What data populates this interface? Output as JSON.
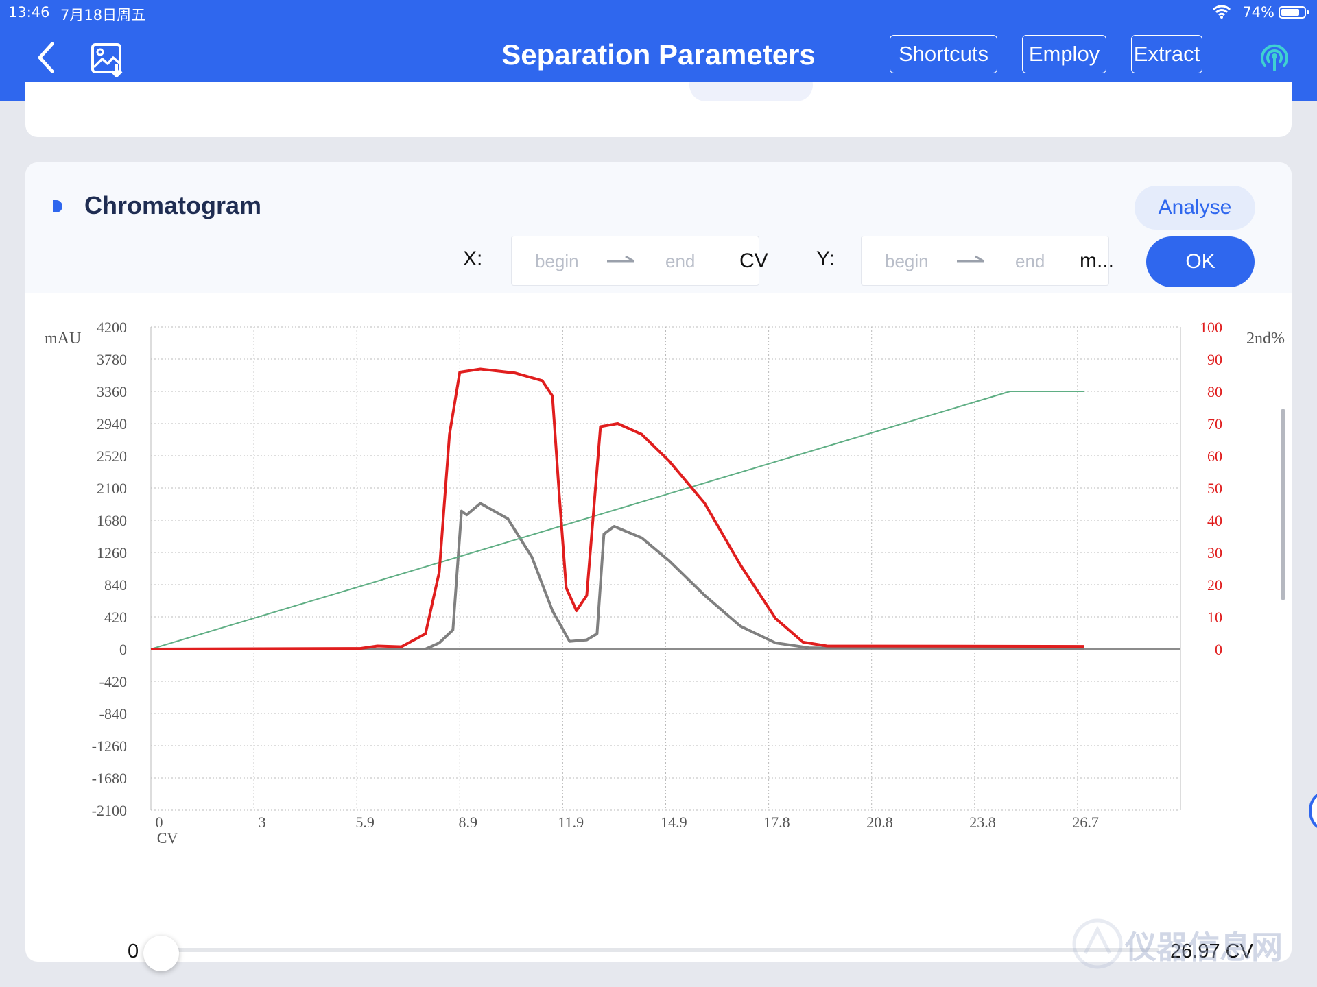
{
  "status_bar": {
    "time": "13:46",
    "date": "7月18日周五",
    "battery": "74%"
  },
  "header": {
    "title": "Separation Parameters",
    "buttons": {
      "shortcuts": "Shortcuts",
      "employ": "Employ",
      "extract": "Extract"
    }
  },
  "panel": {
    "title": "Chromatogram",
    "analyse": "Analyse",
    "x_label": "X:",
    "y_label": "Y:",
    "x_begin_placeholder": "begin",
    "x_end_placeholder": "end",
    "x_unit": "CV",
    "y_begin_placeholder": "begin",
    "y_end_placeholder": "end",
    "y_unit": "m...",
    "ok": "OK"
  },
  "slider": {
    "min_label": "0",
    "max_label": "26.97 CV",
    "value": 0
  },
  "watermark": "仪器信息网",
  "colors": {
    "accent": "#2f67ee",
    "red_series": "#e01e1e",
    "gray_series": "#808080",
    "green_series": "#5fae84"
  },
  "chart_data": {
    "type": "line",
    "xlabel": "CV",
    "ylabel": "mAU",
    "y2label": "2nd%",
    "xlim": [
      0,
      30
    ],
    "ylim": [
      -2100,
      4200
    ],
    "y2lim": [
      0,
      100
    ],
    "x_ticks": [
      "0",
      "3",
      "5.9",
      "8.9",
      "11.9",
      "14.9",
      "17.8",
      "20.8",
      "23.8",
      "26.7"
    ],
    "y_ticks": [
      "4200",
      "3780",
      "3360",
      "2940",
      "2520",
      "2100",
      "1680",
      "1260",
      "840",
      "420",
      "0",
      "-420",
      "-840",
      "-1260",
      "-1680",
      "-2100"
    ],
    "y2_ticks": [
      "100",
      "90",
      "80",
      "70",
      "60",
      "50",
      "40",
      "30",
      "20",
      "10",
      "0"
    ],
    "grid": true,
    "series": [
      {
        "color": "#e01e1e",
        "axis": "left",
        "points": [
          [
            0,
            0
          ],
          [
            6.0,
            8
          ],
          [
            6.5,
            40
          ],
          [
            7.2,
            30
          ],
          [
            7.9,
            200
          ],
          [
            8.3,
            1000
          ],
          [
            8.6,
            2800
          ],
          [
            8.9,
            3610
          ],
          [
            9.5,
            3650
          ],
          [
            10.5,
            3600
          ],
          [
            11.3,
            3500
          ],
          [
            11.6,
            3300
          ],
          [
            11.8,
            2000
          ],
          [
            12.0,
            800
          ],
          [
            12.3,
            500
          ],
          [
            12.6,
            700
          ],
          [
            12.8,
            1800
          ],
          [
            13.0,
            2900
          ],
          [
            13.5,
            2940
          ],
          [
            14.2,
            2800
          ],
          [
            15.0,
            2450
          ],
          [
            16.0,
            1900
          ],
          [
            17.0,
            1100
          ],
          [
            18.0,
            400
          ],
          [
            18.8,
            90
          ],
          [
            19.5,
            40
          ],
          [
            26.9,
            35
          ]
        ]
      },
      {
        "color": "#808080",
        "axis": "left",
        "points": [
          [
            0,
            0
          ],
          [
            7.9,
            0
          ],
          [
            8.3,
            80
          ],
          [
            8.7,
            250
          ],
          [
            8.95,
            1800
          ],
          [
            9.1,
            1750
          ],
          [
            9.5,
            1900
          ],
          [
            10.3,
            1700
          ],
          [
            11.0,
            1200
          ],
          [
            11.6,
            500
          ],
          [
            12.1,
            100
          ],
          [
            12.6,
            120
          ],
          [
            12.9,
            200
          ],
          [
            13.1,
            1500
          ],
          [
            13.4,
            1600
          ],
          [
            14.2,
            1450
          ],
          [
            15.0,
            1150
          ],
          [
            16.0,
            700
          ],
          [
            17.0,
            300
          ],
          [
            18.0,
            80
          ],
          [
            19.0,
            15
          ],
          [
            26.9,
            5
          ]
        ]
      },
      {
        "color": "#5fae84",
        "axis": "right",
        "points": [
          [
            0,
            0
          ],
          [
            24.8,
            80
          ],
          [
            26.9,
            80
          ]
        ]
      }
    ]
  }
}
